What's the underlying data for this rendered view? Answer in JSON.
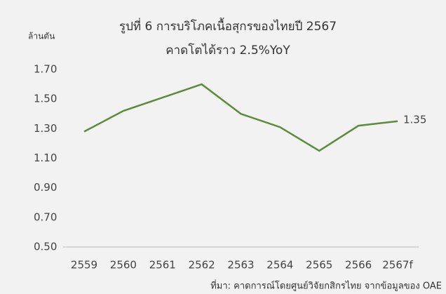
{
  "chart_data": {
    "type": "line",
    "title": "รูปที่ 6 การบริโภคเนื้อสุกรของไทยปี 2567",
    "subtitle": "คาดโตได้ราว 2.5%YoY",
    "y_label": "ล้านตัน",
    "source": "ที่มา: คาดการณ์โดยศูนย์วิจัยกสิกรไทย จากข้อมูลของ OAE",
    "categories": [
      "2559",
      "2560",
      "2561",
      "2562",
      "2563",
      "2564",
      "2565",
      "2566",
      "2567f"
    ],
    "values": [
      1.28,
      1.42,
      1.51,
      1.6,
      1.4,
      1.31,
      1.15,
      1.32,
      1.35
    ],
    "value_labels": [
      null,
      null,
      null,
      null,
      null,
      null,
      null,
      null,
      "1.35"
    ],
    "color": "#5b8c3a",
    "ylim": [
      0.5,
      1.7
    ],
    "yticks": [
      {
        "value": 0.5,
        "label": "0.50"
      },
      {
        "value": 0.7,
        "label": "0.70"
      },
      {
        "value": 0.9,
        "label": "0.90"
      },
      {
        "value": 1.1,
        "label": "1.10"
      },
      {
        "value": 1.3,
        "label": "1.30"
      },
      {
        "value": 1.5,
        "label": "1.50"
      },
      {
        "value": 1.7,
        "label": "1.70"
      }
    ],
    "grid": false
  }
}
